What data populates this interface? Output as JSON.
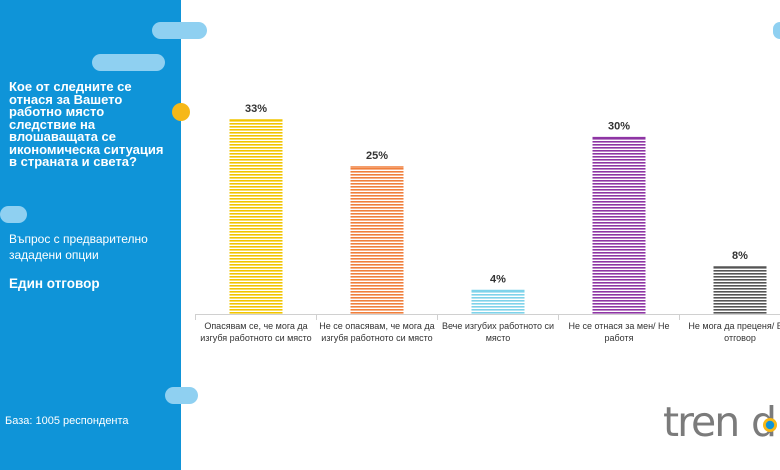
{
  "sidebar": {
    "question": "Кое от следните се отнася за Вашето работно място следствие на влошаващата се икономическа ситуация в страната и света?",
    "question_type": "Въпрос с предварително зададени опции",
    "answer_type": "Един отговор",
    "base": "База: 1005 респондента"
  },
  "logo": {
    "text": "trend"
  },
  "colors": {
    "sidebar": "#0f94d8",
    "pill": "#8fd0f1",
    "accent_dot": "#f6b818",
    "baseline": "#d0d0d0"
  },
  "chart_data": {
    "type": "bar",
    "categories": [
      [
        "Опасявам се, че мога да",
        "изгубя работното си място"
      ],
      [
        "Не се опасявам, че мога да",
        "изгубя работното си място"
      ],
      [
        "Вече изгубих работното си",
        "място"
      ],
      [
        "Не се отнася за мен/ Не",
        "работя"
      ],
      [
        "Не мога да преценя/ Без",
        "отговор"
      ]
    ],
    "values": [
      33,
      25,
      4,
      30,
      8
    ],
    "value_labels": [
      "33%",
      "25%",
      "4%",
      "30%",
      "8%"
    ],
    "bar_colors": [
      "#f2c500",
      "#f07f3c",
      "#7ed3ea",
      "#8e35a4",
      "#555555"
    ],
    "ylim": [
      0,
      33
    ],
    "grid": false,
    "legend": "none"
  }
}
